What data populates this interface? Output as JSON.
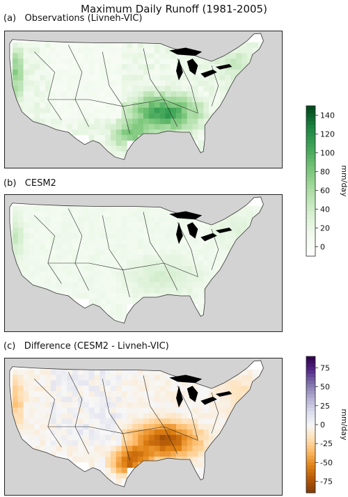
{
  "title": "Maximum Daily Runoff (1981-2005)",
  "panels": [
    {
      "label": "(a)   Observations (Livneh-VIC)",
      "scale": "greens",
      "kind": "obs"
    },
    {
      "label": "(b)   CESM2",
      "scale": "greens",
      "kind": "model"
    },
    {
      "label": "(c)   Difference (CESM2 - Livneh-VIC)",
      "scale": "diverging",
      "kind": "diff"
    }
  ],
  "colorbars": [
    {
      "label": "mm/day",
      "ticks": [
        "0",
        "20",
        "40",
        "60",
        "80",
        "100",
        "120",
        "140"
      ],
      "range": [
        -10,
        150
      ]
    },
    {
      "label": "mm/day",
      "ticks": [
        "-75",
        "-50",
        "-25",
        "0",
        "25",
        "50",
        "75"
      ],
      "range": [
        -90,
        90
      ]
    }
  ],
  "chart_data": {
    "type": "heatmap",
    "title": "Maximum Daily Runoff (1981-2005)",
    "subplots": [
      {
        "name": "Observations (Livneh-VIC)",
        "units": "mm/day",
        "range": [
          0,
          150
        ]
      },
      {
        "name": "CESM2",
        "units": "mm/day",
        "range": [
          0,
          150
        ]
      },
      {
        "name": "Difference (CESM2 - Livneh-VIC)",
        "units": "mm/day",
        "range": [
          -90,
          90
        ]
      }
    ],
    "colors": {
      "land_mask": "#d3d3d3",
      "lakes": "#000000",
      "greens_max": "#00441b",
      "diff_pos": "#3f007d",
      "diff_neg": "#7f3b08"
    }
  }
}
